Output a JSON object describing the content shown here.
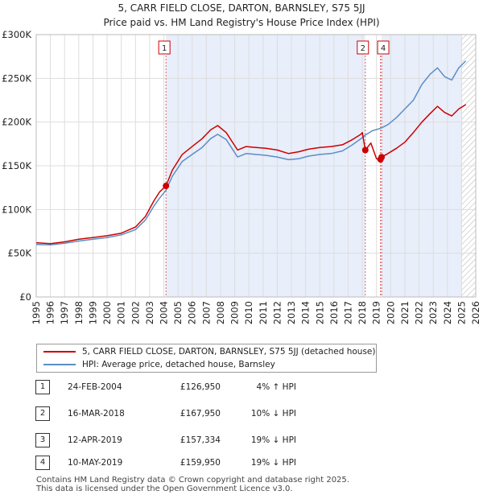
{
  "chart_data": {
    "type": "line",
    "title": "5, CARR FIELD CLOSE, DARTON, BARNSLEY, S75 5JJ",
    "subtitle": "Price paid vs. HM Land Registry's House Price Index (HPI)",
    "x_ticks": [
      "1995",
      "1996",
      "1997",
      "1998",
      "1999",
      "2000",
      "2001",
      "2002",
      "2003",
      "2004",
      "2005",
      "2006",
      "2007",
      "2008",
      "2009",
      "2010",
      "2011",
      "2012",
      "2013",
      "2014",
      "2015",
      "2016",
      "2017",
      "2018",
      "2019",
      "2020",
      "2021",
      "2022",
      "2023",
      "2024",
      "2025",
      "2026"
    ],
    "y_ticks": [
      "£0",
      "£50K",
      "£100K",
      "£150K",
      "£200K",
      "£250K",
      "£300K"
    ],
    "xlim": [
      1995,
      2026
    ],
    "ylim": [
      0,
      300000
    ],
    "series": [
      {
        "name": "5, CARR FIELD CLOSE, DARTON, BARNSLEY, S75 5JJ (detached house)",
        "color": "#cc0000",
        "x": [
          1995.0,
          1996.0,
          1997.0,
          1998.0,
          1999.0,
          2000.0,
          2001.0,
          2002.0,
          2002.7,
          2003.3,
          2003.7,
          2004.15,
          2004.6,
          2005.3,
          2006.0,
          2006.7,
          2007.3,
          2007.8,
          2008.4,
          2008.8,
          2009.2,
          2009.8,
          2010.5,
          2011.2,
          2012.0,
          2012.8,
          2013.5,
          2014.2,
          2015.0,
          2015.8,
          2016.6,
          2017.3,
          2017.9,
          2018.0,
          2018.21,
          2018.6,
          2019.0,
          2019.28,
          2019.36,
          2019.8,
          2020.4,
          2021.0,
          2021.6,
          2022.2,
          2022.8,
          2023.3,
          2023.8,
          2024.3,
          2024.8,
          2025.3
        ],
        "y": [
          62000,
          61000,
          63000,
          66000,
          68000,
          70000,
          73000,
          80000,
          92000,
          110000,
          120000,
          126950,
          145000,
          163000,
          172000,
          181000,
          191000,
          196000,
          188000,
          178000,
          168000,
          172000,
          171000,
          170000,
          168000,
          164000,
          166000,
          169000,
          171000,
          172000,
          174000,
          180000,
          186000,
          188000,
          167950,
          176000,
          158000,
          157334,
          159950,
          164000,
          170000,
          177000,
          188000,
          200000,
          210000,
          218000,
          211000,
          207000,
          215000,
          220000
        ]
      },
      {
        "name": "HPI: Average price, detached house, Barnsley",
        "color": "#5b8ec7",
        "x": [
          1995.0,
          1996.0,
          1997.0,
          1998.0,
          1999.0,
          2000.0,
          2001.0,
          2002.0,
          2002.7,
          2003.3,
          2003.7,
          2004.15,
          2004.6,
          2005.3,
          2006.0,
          2006.7,
          2007.3,
          2007.8,
          2008.4,
          2008.8,
          2009.2,
          2009.8,
          2010.5,
          2011.2,
          2012.0,
          2012.8,
          2013.5,
          2014.2,
          2015.0,
          2015.8,
          2016.6,
          2017.3,
          2017.9,
          2018.2,
          2018.7,
          2019.3,
          2019.8,
          2020.4,
          2021.0,
          2021.6,
          2022.2,
          2022.8,
          2023.3,
          2023.8,
          2024.3,
          2024.8,
          2025.3
        ],
        "y": [
          60000,
          59500,
          61500,
          64000,
          66000,
          68000,
          71000,
          77000,
          88000,
          104000,
          113000,
          122000,
          138000,
          155000,
          163000,
          171000,
          181000,
          186000,
          180000,
          170000,
          160000,
          164000,
          163000,
          162000,
          160000,
          157000,
          158000,
          161000,
          163000,
          164000,
          167000,
          174000,
          181000,
          185000,
          190000,
          193000,
          197000,
          205000,
          215000,
          225000,
          243000,
          255000,
          262000,
          252000,
          248000,
          262000,
          270000
        ]
      }
    ],
    "markers": [
      {
        "label": "1",
        "x": 2004.15,
        "y": 126950
      },
      {
        "label": "2",
        "x": 2018.21,
        "y": 167950
      },
      {
        "label": "3",
        "x": 2019.28,
        "y": 157334
      },
      {
        "label": "4",
        "x": 2019.36,
        "y": 159950
      }
    ],
    "shaded_ranges": [
      [
        2004.15,
        2018.21
      ],
      [
        2019.36,
        2025.0
      ]
    ],
    "hatched_from": 2025.0,
    "grid": true
  },
  "legend": {
    "items": [
      {
        "label": "5, CARR FIELD CLOSE, DARTON, BARNSLEY, S75 5JJ (detached house)",
        "color": "#cc0000"
      },
      {
        "label": "HPI: Average price, detached house, Barnsley",
        "color": "#5b8ec7"
      }
    ]
  },
  "sales": [
    {
      "num": "1",
      "date": "24-FEB-2004",
      "price": "£126,950",
      "hpi": "4% ↑ HPI"
    },
    {
      "num": "2",
      "date": "16-MAR-2018",
      "price": "£167,950",
      "hpi": "10% ↓ HPI"
    },
    {
      "num": "3",
      "date": "12-APR-2019",
      "price": "£157,334",
      "hpi": "19% ↓ HPI"
    },
    {
      "num": "4",
      "date": "10-MAY-2019",
      "price": "£159,950",
      "hpi": "19% ↓ HPI"
    }
  ],
  "footer": {
    "line1": "Contains HM Land Registry data © Crown copyright and database right 2025.",
    "line2": "This data is licensed under the Open Government Licence v3.0."
  }
}
